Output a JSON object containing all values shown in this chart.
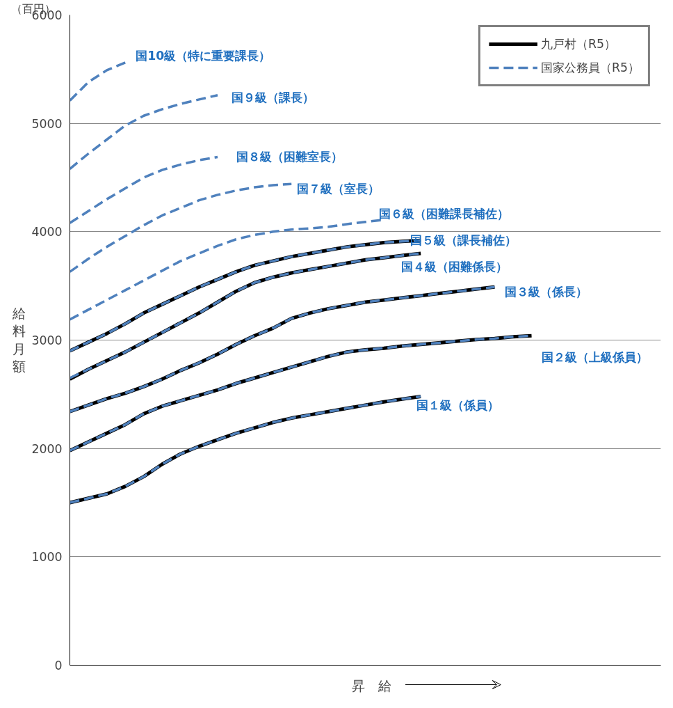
{
  "chart_data": {
    "type": "line",
    "xlabel": "昇　給",
    "ylabel": "給料月額",
    "categories": [
      null,
      null,
      null,
      null,
      null,
      null,
      null,
      null,
      null,
      null,
      null,
      null,
      null,
      null,
      null,
      null,
      null,
      null,
      null,
      null,
      null,
      null,
      null,
      null,
      null,
      null,
      null,
      null,
      null,
      null,
      null,
      null,
      null
    ],
    "ylim": [
      0,
      6000
    ],
    "yticks": [
      0,
      1000,
      2000,
      3000,
      4000,
      5000,
      6000
    ],
    "tick_labels": "y",
    "grid": "y",
    "legend": "top right",
    "series": [
      {
        "name": "九戸村（R5）",
        "color": "#000000",
        "line_style": "solid",
        "values": [
          1500,
          1540,
          1580,
          1650,
          1740,
          1855,
          1950,
          2020,
          2080,
          2140,
          2190,
          2240,
          2280,
          2310,
          2340,
          2370,
          2400,
          2430,
          2455,
          2480,
          null,
          null,
          null,
          null,
          null,
          null,
          null,
          null,
          null,
          null,
          null,
          null,
          null
        ]
      },
      {
        "color": "#000000",
        "line_style": "solid",
        "values": [
          1980,
          2060,
          2140,
          2220,
          2320,
          2390,
          2440,
          2490,
          2540,
          2600,
          2650,
          2700,
          2750,
          2800,
          2850,
          2890,
          2910,
          2925,
          2945,
          2960,
          2975,
          2990,
          3005,
          3015,
          3030,
          3040,
          null,
          null,
          null,
          null,
          null,
          null,
          null
        ]
      },
      {
        "color": "#000000",
        "line_style": "solid",
        "values": [
          2340,
          2400,
          2460,
          2510,
          2570,
          2640,
          2720,
          2790,
          2870,
          2960,
          3040,
          3110,
          3200,
          3250,
          3290,
          3320,
          3350,
          3370,
          3390,
          3410,
          3430,
          3450,
          3470,
          3490,
          null,
          null,
          null,
          null,
          null,
          null,
          null,
          null,
          null
        ]
      },
      {
        "color": "#000000",
        "line_style": "solid",
        "values": [
          2640,
          2730,
          2810,
          2890,
          2980,
          3070,
          3160,
          3250,
          3350,
          3450,
          3530,
          3580,
          3620,
          3650,
          3680,
          3710,
          3740,
          3760,
          3780,
          3800,
          null,
          null,
          null,
          null,
          null,
          null,
          null,
          null,
          null,
          null,
          null,
          null,
          null
        ]
      },
      {
        "color": "#000000",
        "line_style": "solid",
        "values": [
          2900,
          2980,
          3060,
          3150,
          3250,
          3330,
          3410,
          3490,
          3560,
          3630,
          3690,
          3730,
          3770,
          3800,
          3830,
          3860,
          3880,
          3900,
          3910,
          3920,
          null,
          null,
          null,
          null,
          null,
          null,
          null,
          null,
          null,
          null,
          null,
          null,
          null
        ]
      },
      {
        "name": "国家公務員（R5）",
        "color": "#4f81bd",
        "line_style": "dashed",
        "values": [
          1500,
          1540,
          1580,
          1650,
          1740,
          1855,
          1950,
          2020,
          2080,
          2140,
          2190,
          2240,
          2280,
          2310,
          2340,
          2370,
          2400,
          2430,
          2455,
          2480,
          null,
          null,
          null,
          null,
          null,
          null,
          null,
          null,
          null,
          null,
          null,
          null,
          null
        ]
      },
      {
        "color": "#4f81bd",
        "line_style": "dashed",
        "values": [
          1980,
          2060,
          2140,
          2220,
          2320,
          2390,
          2440,
          2490,
          2540,
          2600,
          2650,
          2700,
          2750,
          2800,
          2850,
          2890,
          2910,
          2925,
          2945,
          2960,
          2975,
          2990,
          3005,
          3015,
          3030,
          3040,
          null,
          null,
          null,
          null,
          null,
          null,
          null
        ]
      },
      {
        "color": "#4f81bd",
        "line_style": "dashed",
        "values": [
          2340,
          2400,
          2460,
          2510,
          2570,
          2640,
          2720,
          2790,
          2870,
          2960,
          3040,
          3110,
          3200,
          3250,
          3290,
          3320,
          3350,
          3370,
          3390,
          3410,
          3430,
          3450,
          3470,
          3490,
          null,
          null,
          null,
          null,
          null,
          null,
          null,
          null,
          null
        ]
      },
      {
        "color": "#4f81bd",
        "line_style": "dashed",
        "values": [
          2650,
          2730,
          2810,
          2890,
          2980,
          3070,
          3160,
          3250,
          3350,
          3450,
          3530,
          3580,
          3620,
          3650,
          3680,
          3710,
          3740,
          3760,
          3780,
          3800,
          null,
          null,
          null,
          null,
          null,
          null,
          null,
          null,
          null,
          null,
          null,
          null,
          null
        ]
      },
      {
        "color": "#4f81bd",
        "line_style": "dashed",
        "values": [
          2900,
          2980,
          3060,
          3150,
          3250,
          3330,
          3410,
          3490,
          3560,
          3630,
          3690,
          3730,
          3770,
          3800,
          3830,
          3860,
          3880,
          3900,
          3910,
          3920,
          null,
          null,
          null,
          null,
          null,
          null,
          null,
          null,
          null,
          null,
          null,
          null,
          null
        ]
      },
      {
        "color": "#4f81bd",
        "line_style": "dashed",
        "values": [
          3190,
          3280,
          3370,
          3460,
          3550,
          3640,
          3730,
          3800,
          3870,
          3930,
          3970,
          4000,
          4020,
          4030,
          4045,
          4070,
          4090,
          4110,
          null,
          null,
          null,
          null,
          null,
          null,
          null,
          null,
          null,
          null,
          null,
          null,
          null,
          null,
          null
        ]
      },
      {
        "color": "#4f81bd",
        "line_style": "dashed",
        "values": [
          3630,
          3750,
          3860,
          3960,
          4060,
          4150,
          4220,
          4290,
          4340,
          4380,
          4410,
          4430,
          4440,
          null,
          null,
          null,
          null,
          null,
          null,
          null,
          null,
          null,
          null,
          null,
          null,
          null,
          null,
          null,
          null,
          null,
          null,
          null,
          null
        ]
      },
      {
        "color": "#4f81bd",
        "line_style": "dashed",
        "values": [
          4080,
          4190,
          4300,
          4400,
          4500,
          4570,
          4620,
          4660,
          4690,
          null,
          null,
          null,
          null,
          null,
          null,
          null,
          null,
          null,
          null,
          null,
          null,
          null,
          null,
          null,
          null,
          null,
          null,
          null,
          null,
          null,
          null,
          null,
          null
        ]
      },
      {
        "color": "#4f81bd",
        "line_style": "dashed",
        "values": [
          4580,
          4720,
          4850,
          4980,
          5070,
          5130,
          5180,
          5220,
          5260,
          null,
          null,
          null,
          null,
          null,
          null,
          null,
          null,
          null,
          null,
          null,
          null,
          null,
          null,
          null,
          null,
          null,
          null,
          null,
          null,
          null,
          null,
          null,
          null
        ]
      },
      {
        "color": "#4f81bd",
        "line_style": "dashed",
        "values": [
          5210,
          5380,
          5490,
          5560,
          null,
          null,
          null,
          null,
          null,
          null,
          null,
          null,
          null,
          null,
          null,
          null,
          null,
          null,
          null,
          null,
          null,
          null,
          null,
          null,
          null,
          null,
          null,
          null,
          null,
          null,
          null,
          null,
          null
        ]
      }
    ],
    "annotations": [
      "（百円）",
      "国10級（特に重要課長）",
      "国９級（課長）",
      "国８級（困難室長）",
      "国７級（室長）",
      "国６級（困難課長補佐）",
      "国５級（課長補佐）",
      "国４級（困難係長）",
      "国３級（係長）",
      "国２級（上級係員）",
      "国１級（係員）"
    ]
  }
}
